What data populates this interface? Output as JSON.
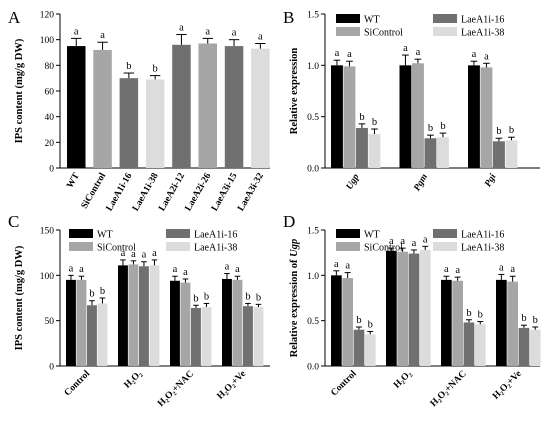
{
  "colors": {
    "WT": "#000000",
    "SiControl": "#a6a6a6",
    "LaeA1i-16": "#707070",
    "LaeA1i-38": "#dcdcdc"
  },
  "chart_data": [
    {
      "panel": "A",
      "type": "bar",
      "ylabel": "IPS content (mg/g DW)",
      "ylim": [
        0,
        120
      ],
      "yticks": [
        0,
        20,
        40,
        60,
        80,
        100,
        120
      ],
      "categories": [
        "WT",
        "SiControl",
        "LaeA1i-16",
        "LaeA1i-38",
        "LaeA2i-12",
        "LaeA2i-26",
        "LaeA3i-15",
        "LaeA3i-32"
      ],
      "values": [
        95,
        92,
        70,
        69,
        96,
        97,
        95,
        93
      ],
      "errors": [
        6,
        6,
        4,
        3,
        8,
        4,
        5,
        4
      ],
      "colors": [
        "#000000",
        "#a6a6a6",
        "#707070",
        "#dcdcdc",
        "#707070",
        "#a6a6a6",
        "#707070",
        "#dcdcdc"
      ],
      "labels": [
        "a",
        "a",
        "b",
        "b",
        "a",
        "a",
        "a",
        "a"
      ]
    },
    {
      "panel": "B",
      "type": "bar",
      "ylabel": "Relative expression",
      "ylim": [
        0,
        1.5
      ],
      "yticks": [
        0.0,
        0.5,
        1.0,
        1.5
      ],
      "categories": [
        "Ugp",
        "Pgm",
        "Pgi"
      ],
      "legend": [
        "WT",
        "SiControl",
        "LaeA1i-16",
        "LaeA1i-38"
      ],
      "series": [
        {
          "name": "WT",
          "values": [
            1.0,
            1.0,
            1.0
          ],
          "errors": [
            0.05,
            0.1,
            0.04
          ]
        },
        {
          "name": "SiControl",
          "values": [
            0.99,
            1.02,
            0.98
          ],
          "errors": [
            0.05,
            0.04,
            0.04
          ]
        },
        {
          "name": "LaeA1i-16",
          "values": [
            0.39,
            0.29,
            0.26
          ],
          "errors": [
            0.04,
            0.03,
            0.03
          ]
        },
        {
          "name": "LaeA1i-38",
          "values": [
            0.33,
            0.3,
            0.27
          ],
          "errors": [
            0.05,
            0.04,
            0.03
          ]
        }
      ],
      "labels": [
        [
          "a",
          "a",
          "b",
          "b"
        ],
        [
          "a",
          "a",
          "b",
          "b"
        ],
        [
          "a",
          "a",
          "b",
          "b"
        ]
      ]
    },
    {
      "panel": "C",
      "type": "bar",
      "ylabel": "IPS content (mg/g DW)",
      "ylim": [
        0,
        150
      ],
      "yticks": [
        0,
        50,
        100,
        150
      ],
      "categories": [
        "Control",
        "H₂O₂",
        "H₂O₂+NAC",
        "H₂O₂+Ve"
      ],
      "legend": [
        "WT",
        "SiControl",
        "LaeA1i-16",
        "LaeA1i-38"
      ],
      "series": [
        {
          "name": "WT",
          "values": [
            95,
            111,
            94,
            96
          ],
          "errors": [
            5,
            6,
            5,
            6
          ]
        },
        {
          "name": "SiControl",
          "values": [
            95,
            112,
            92,
            95
          ],
          "errors": [
            4,
            4,
            4,
            4
          ]
        },
        {
          "name": "LaeA1i-16",
          "values": [
            67,
            110,
            64,
            66
          ],
          "errors": [
            5,
            5,
            3,
            3
          ]
        },
        {
          "name": "LaeA1i-38",
          "values": [
            69,
            111,
            65,
            65
          ],
          "errors": [
            6,
            6,
            4,
            3
          ]
        }
      ],
      "labels": [
        [
          "a",
          "a",
          "b",
          "b"
        ],
        [
          "a",
          "a",
          "a",
          "a"
        ],
        [
          "a",
          "a",
          "b",
          "b"
        ],
        [
          "a",
          "a",
          "b",
          "b"
        ]
      ]
    },
    {
      "panel": "D",
      "type": "bar",
      "ylabel_prefix": "Relative expression of ",
      "ylabel_gene": "Ugp",
      "ylim": [
        0,
        1.5
      ],
      "yticks": [
        0.0,
        0.5,
        1.0,
        1.5
      ],
      "categories": [
        "Control",
        "H₂O₂",
        "H₂O₂+NAC",
        "H₂O₂+Ve"
      ],
      "legend": [
        "WT",
        "SiControl",
        "LaeA1i-16",
        "LaeA1i-38"
      ],
      "series": [
        {
          "name": "WT",
          "values": [
            1.0,
            1.27,
            0.95,
            0.95
          ],
          "errors": [
            0.05,
            0.03,
            0.04,
            0.06
          ]
        },
        {
          "name": "SiControl",
          "values": [
            0.97,
            1.26,
            0.94,
            0.93
          ],
          "errors": [
            0.06,
            0.04,
            0.04,
            0.06
          ]
        },
        {
          "name": "LaeA1i-16",
          "values": [
            0.4,
            1.24,
            0.48,
            0.42
          ],
          "errors": [
            0.03,
            0.04,
            0.03,
            0.03
          ]
        },
        {
          "name": "LaeA1i-38",
          "values": [
            0.35,
            1.28,
            0.46,
            0.4
          ],
          "errors": [
            0.03,
            0.04,
            0.03,
            0.03
          ]
        }
      ],
      "labels": [
        [
          "a",
          "a",
          "b",
          "b"
        ],
        [
          "a",
          "a",
          "a",
          "a"
        ],
        [
          "a",
          "a",
          "b",
          "b"
        ],
        [
          "a",
          "a",
          "b",
          "b"
        ]
      ]
    }
  ]
}
